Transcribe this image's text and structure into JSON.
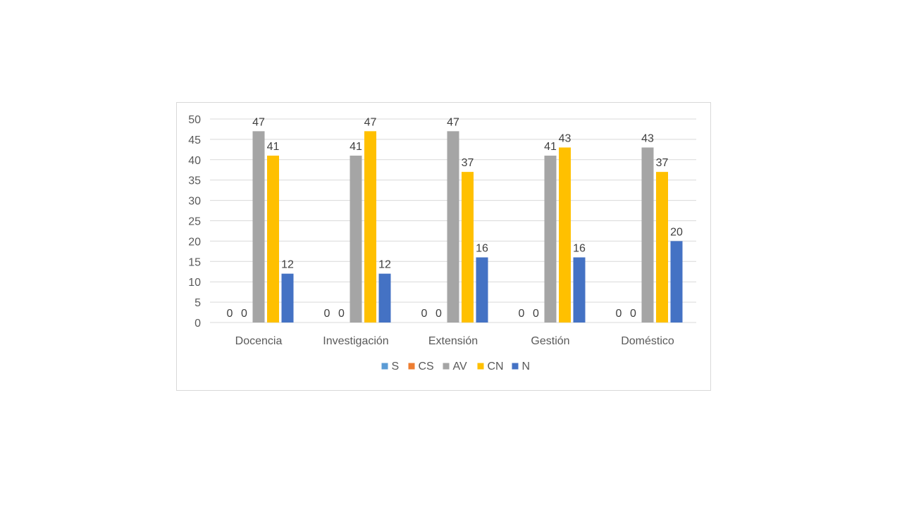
{
  "chart_data": {
    "type": "bar",
    "title": "",
    "xlabel": "",
    "ylabel": "",
    "ylim": [
      0,
      50
    ],
    "yticks": [
      0,
      5,
      10,
      15,
      20,
      25,
      30,
      35,
      40,
      45,
      50
    ],
    "grid": true,
    "legend_position": "bottom",
    "categories": [
      "Docencia",
      "Investigación",
      "Extensión",
      "Gestión",
      "Doméstico"
    ],
    "series": [
      {
        "name": "S",
        "color": "#5b9bd5",
        "values": [
          0,
          0,
          0,
          0,
          0
        ]
      },
      {
        "name": "CS",
        "color": "#ed7d31",
        "values": [
          0,
          0,
          0,
          0,
          0
        ]
      },
      {
        "name": "AV",
        "color": "#a5a5a5",
        "values": [
          47,
          41,
          47,
          41,
          43
        ]
      },
      {
        "name": "CN",
        "color": "#ffc000",
        "values": [
          41,
          47,
          37,
          43,
          37
        ]
      },
      {
        "name": "N",
        "color": "#4472c4",
        "values": [
          12,
          12,
          16,
          16,
          20
        ]
      }
    ]
  }
}
